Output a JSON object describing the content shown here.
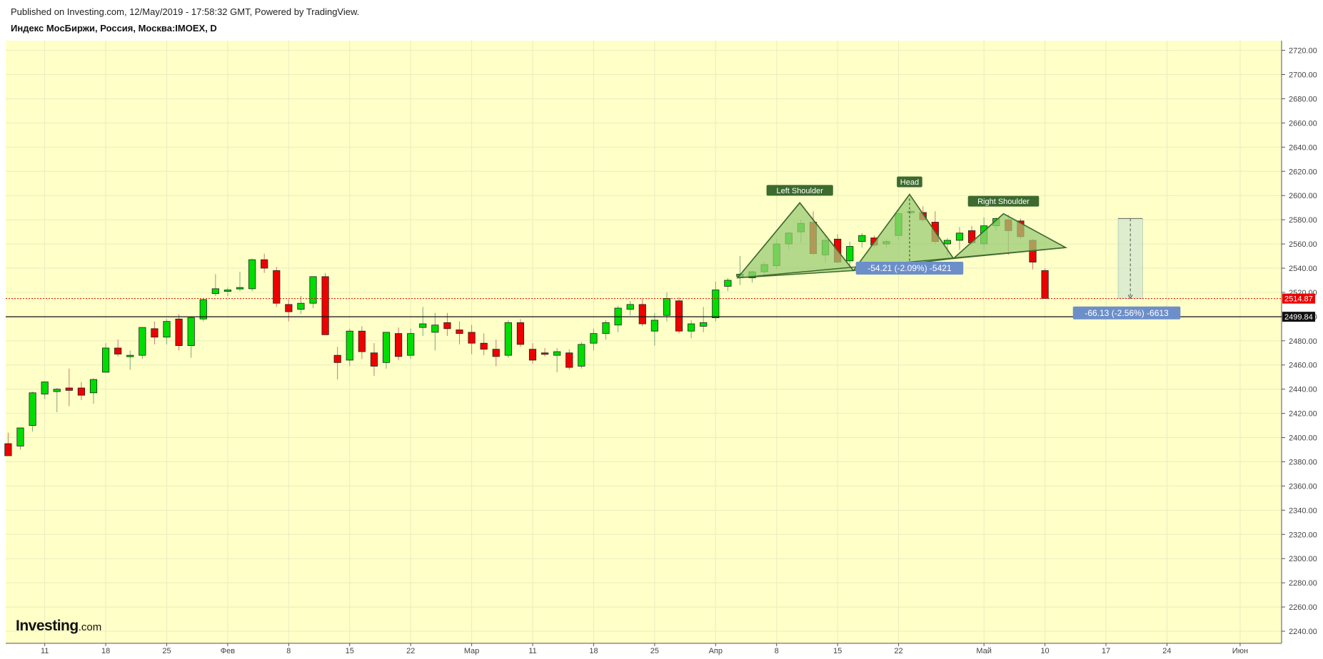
{
  "header": {
    "published": "Published on Investing.com, 12/May/2019 - 17:58:32 GMT, Powered by TradingView.",
    "symbol": "Индекс МосБиржи, Россия, Москва:IMOEX, D"
  },
  "logo": {
    "brand": "Investing",
    "suffix": ".com"
  },
  "colors": {
    "plot_bg": "#ffffc8",
    "up": "#00dd00",
    "down": "#ee0000",
    "pattern_fill": "#9ccc75",
    "pattern_line": "#3d6a2e",
    "label_bg": "#3d6a2e",
    "measure_bg": "#6d8fc9"
  },
  "chart_data": {
    "type": "candlestick",
    "title": "Индекс МосБиржи, Россия, Москва:IMOEX, D",
    "xlabel": "",
    "ylabel": "",
    "ylim": [
      2230,
      2728
    ],
    "y_ticks": [
      2240,
      2260,
      2280,
      2300,
      2320,
      2340,
      2360,
      2380,
      2400,
      2420,
      2440,
      2460,
      2480,
      2500,
      2520,
      2540,
      2560,
      2580,
      2600,
      2620,
      2640,
      2660,
      2680,
      2700,
      2720
    ],
    "x_ticks": [
      {
        "i": 3,
        "label": "11"
      },
      {
        "i": 8,
        "label": "18"
      },
      {
        "i": 13,
        "label": "25"
      },
      {
        "i": 18,
        "label": "Фев"
      },
      {
        "i": 23,
        "label": "8"
      },
      {
        "i": 28,
        "label": "15"
      },
      {
        "i": 33,
        "label": "22"
      },
      {
        "i": 38,
        "label": "Мар"
      },
      {
        "i": 43,
        "label": "11"
      },
      {
        "i": 48,
        "label": "18"
      },
      {
        "i": 53,
        "label": "25"
      },
      {
        "i": 58,
        "label": "Апр"
      },
      {
        "i": 63,
        "label": "8"
      },
      {
        "i": 68,
        "label": "15"
      },
      {
        "i": 73,
        "label": "22"
      },
      {
        "i": 80,
        "label": "Май"
      },
      {
        "i": 85,
        "label": "10"
      },
      {
        "i": 90,
        "label": "17"
      },
      {
        "i": 95,
        "label": "24"
      },
      {
        "i": 101,
        "label": "Июн"
      }
    ],
    "x_domain": [
      -0.2,
      104.4
    ],
    "candles": [
      {
        "o": 2395,
        "h": 2404,
        "l": 2385,
        "c": 2385
      },
      {
        "o": 2393,
        "h": 2408,
        "l": 2390,
        "c": 2408
      },
      {
        "o": 2410,
        "h": 2438,
        "l": 2405,
        "c": 2437
      },
      {
        "o": 2436,
        "h": 2446,
        "l": 2432,
        "c": 2446
      },
      {
        "o": 2438,
        "h": 2441,
        "l": 2421,
        "c": 2440
      },
      {
        "o": 2441,
        "h": 2457,
        "l": 2426,
        "c": 2439
      },
      {
        "o": 2441,
        "h": 2446,
        "l": 2431,
        "c": 2435
      },
      {
        "o": 2437,
        "h": 2449,
        "l": 2428,
        "c": 2448
      },
      {
        "o": 2454,
        "h": 2478,
        "l": 2454,
        "c": 2474
      },
      {
        "o": 2474,
        "h": 2481,
        "l": 2467,
        "c": 2469
      },
      {
        "o": 2467,
        "h": 2472,
        "l": 2456,
        "c": 2468
      },
      {
        "o": 2468,
        "h": 2491,
        "l": 2465,
        "c": 2491
      },
      {
        "o": 2490,
        "h": 2496,
        "l": 2477,
        "c": 2483
      },
      {
        "o": 2483,
        "h": 2498,
        "l": 2477,
        "c": 2496
      },
      {
        "o": 2498,
        "h": 2502,
        "l": 2472,
        "c": 2476
      },
      {
        "o": 2476,
        "h": 2500,
        "l": 2466,
        "c": 2499
      },
      {
        "o": 2498,
        "h": 2515,
        "l": 2496,
        "c": 2514
      },
      {
        "o": 2519,
        "h": 2535,
        "l": 2517,
        "c": 2523
      },
      {
        "o": 2521,
        "h": 2524,
        "l": 2517,
        "c": 2522
      },
      {
        "o": 2523,
        "h": 2537,
        "l": 2521,
        "c": 2524
      },
      {
        "o": 2523,
        "h": 2548,
        "l": 2521,
        "c": 2547
      },
      {
        "o": 2547,
        "h": 2552,
        "l": 2536,
        "c": 2540
      },
      {
        "o": 2538,
        "h": 2541,
        "l": 2508,
        "c": 2511
      },
      {
        "o": 2510,
        "h": 2514,
        "l": 2496,
        "c": 2504
      },
      {
        "o": 2506,
        "h": 2517,
        "l": 2502,
        "c": 2511
      },
      {
        "o": 2511,
        "h": 2533,
        "l": 2507,
        "c": 2533
      },
      {
        "o": 2533,
        "h": 2536,
        "l": 2485,
        "c": 2485
      },
      {
        "o": 2468,
        "h": 2475,
        "l": 2448,
        "c": 2462
      },
      {
        "o": 2464,
        "h": 2490,
        "l": 2459,
        "c": 2488
      },
      {
        "o": 2488,
        "h": 2492,
        "l": 2465,
        "c": 2471
      },
      {
        "o": 2470,
        "h": 2478,
        "l": 2451,
        "c": 2459
      },
      {
        "o": 2462,
        "h": 2487,
        "l": 2457,
        "c": 2487
      },
      {
        "o": 2486,
        "h": 2491,
        "l": 2464,
        "c": 2467
      },
      {
        "o": 2468,
        "h": 2490,
        "l": 2465,
        "c": 2486
      },
      {
        "o": 2491,
        "h": 2508,
        "l": 2484,
        "c": 2494
      },
      {
        "o": 2487,
        "h": 2503,
        "l": 2472,
        "c": 2493
      },
      {
        "o": 2495,
        "h": 2503,
        "l": 2484,
        "c": 2490
      },
      {
        "o": 2489,
        "h": 2496,
        "l": 2477,
        "c": 2486
      },
      {
        "o": 2487,
        "h": 2493,
        "l": 2469,
        "c": 2478
      },
      {
        "o": 2478,
        "h": 2486,
        "l": 2468,
        "c": 2473
      },
      {
        "o": 2473,
        "h": 2481,
        "l": 2459,
        "c": 2467
      },
      {
        "o": 2468,
        "h": 2497,
        "l": 2466,
        "c": 2495
      },
      {
        "o": 2495,
        "h": 2498,
        "l": 2475,
        "c": 2477
      },
      {
        "o": 2473,
        "h": 2478,
        "l": 2461,
        "c": 2464
      },
      {
        "o": 2470,
        "h": 2474,
        "l": 2467,
        "c": 2469
      },
      {
        "o": 2468,
        "h": 2474,
        "l": 2454,
        "c": 2471
      },
      {
        "o": 2470,
        "h": 2473,
        "l": 2456,
        "c": 2458
      },
      {
        "o": 2459,
        "h": 2479,
        "l": 2457,
        "c": 2477
      },
      {
        "o": 2478,
        "h": 2490,
        "l": 2472,
        "c": 2486
      },
      {
        "o": 2486,
        "h": 2497,
        "l": 2481,
        "c": 2495
      },
      {
        "o": 2493,
        "h": 2509,
        "l": 2487,
        "c": 2507
      },
      {
        "o": 2506,
        "h": 2513,
        "l": 2501,
        "c": 2510
      },
      {
        "o": 2510,
        "h": 2515,
        "l": 2492,
        "c": 2494
      },
      {
        "o": 2488,
        "h": 2503,
        "l": 2476,
        "c": 2497
      },
      {
        "o": 2501,
        "h": 2520,
        "l": 2496,
        "c": 2515
      },
      {
        "o": 2513,
        "h": 2516,
        "l": 2486,
        "c": 2488
      },
      {
        "o": 2488,
        "h": 2497,
        "l": 2482,
        "c": 2494
      },
      {
        "o": 2492,
        "h": 2508,
        "l": 2487,
        "c": 2495
      },
      {
        "o": 2499,
        "h": 2529,
        "l": 2496,
        "c": 2522
      },
      {
        "o": 2525,
        "h": 2532,
        "l": 2521,
        "c": 2530
      },
      {
        "o": 2533,
        "h": 2550,
        "l": 2526,
        "c": 2535
      },
      {
        "o": 2532,
        "h": 2538,
        "l": 2528,
        "c": 2537
      },
      {
        "o": 2537,
        "h": 2545,
        "l": 2534,
        "c": 2543
      },
      {
        "o": 2542,
        "h": 2564,
        "l": 2539,
        "c": 2560
      },
      {
        "o": 2560,
        "h": 2570,
        "l": 2555,
        "c": 2569
      },
      {
        "o": 2570,
        "h": 2580,
        "l": 2561,
        "c": 2577
      },
      {
        "o": 2578,
        "h": 2587,
        "l": 2551,
        "c": 2552
      },
      {
        "o": 2551,
        "h": 2567,
        "l": 2545,
        "c": 2563
      },
      {
        "o": 2564,
        "h": 2568,
        "l": 2544,
        "c": 2545
      },
      {
        "o": 2546,
        "h": 2562,
        "l": 2542,
        "c": 2558
      },
      {
        "o": 2562,
        "h": 2569,
        "l": 2557,
        "c": 2567
      },
      {
        "o": 2565,
        "h": 2567,
        "l": 2557,
        "c": 2559
      },
      {
        "o": 2560,
        "h": 2564,
        "l": 2557,
        "c": 2562
      },
      {
        "o": 2567,
        "h": 2589,
        "l": 2563,
        "c": 2585
      },
      {
        "o": 2586,
        "h": 2588,
        "l": 2584,
        "c": 2587
      },
      {
        "o": 2586,
        "h": 2591,
        "l": 2578,
        "c": 2580
      },
      {
        "o": 2578,
        "h": 2587,
        "l": 2560,
        "c": 2562
      },
      {
        "o": 2560,
        "h": 2565,
        "l": 2550,
        "c": 2563
      },
      {
        "o": 2563,
        "h": 2574,
        "l": 2555,
        "c": 2569
      },
      {
        "o": 2571,
        "h": 2575,
        "l": 2559,
        "c": 2561
      },
      {
        "o": 2560,
        "h": 2582,
        "l": 2555,
        "c": 2575
      },
      {
        "o": 2575,
        "h": 2582,
        "l": 2571,
        "c": 2581
      },
      {
        "o": 2580,
        "h": 2584,
        "l": 2551,
        "c": 2571
      },
      {
        "o": 2579,
        "h": 2581,
        "l": 2564,
        "c": 2566
      },
      {
        "o": 2563,
        "h": 2564,
        "l": 2539,
        "c": 2545
      },
      {
        "o": 2538,
        "h": 2540,
        "l": 2515,
        "c": 2515
      }
    ],
    "pattern": {
      "name": "head-and-shoulders",
      "labels": [
        "Left Shoulder",
        "Head",
        "Right Shoulder"
      ],
      "points": [
        {
          "i": 59.8,
          "v": 2532
        },
        {
          "i": 64.9,
          "v": 2594
        },
        {
          "i": 69.3,
          "v": 2538
        },
        {
          "i": 73.9,
          "v": 2601
        },
        {
          "i": 77.5,
          "v": 2548
        },
        {
          "i": 81.6,
          "v": 2585
        },
        {
          "i": 86.7,
          "v": 2557
        }
      ]
    },
    "horizontal_lines": [
      {
        "value": 2514.87,
        "label": "2514.87",
        "style": "dotted-red"
      },
      {
        "value": 2499.84,
        "label": "2499.84",
        "style": "solid-black"
      }
    ],
    "measure_labels": [
      {
        "text": "-54.21 (-2.09%) -5421",
        "i": 73.9,
        "v": 2540
      },
      {
        "text": "-66.13 (-2.56%) -6613",
        "i": 91.7,
        "v": 2503
      }
    ],
    "projection_box": {
      "i0": 91.0,
      "i1": 93.0,
      "v_top": 2581,
      "v_bottom": 2515
    }
  }
}
